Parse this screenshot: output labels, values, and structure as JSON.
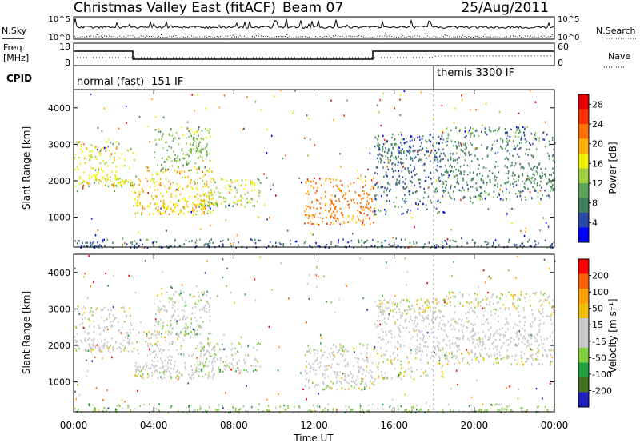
{
  "header": {
    "title": "Christmas Valley East (fitACF)",
    "beam": "Beam 07",
    "date": "25/Aug/2011"
  },
  "noise_panel": {
    "left_label": "N.Sky",
    "right_label": "N.Search",
    "left_ticks": [
      "10^5",
      "10^0"
    ],
    "right_ticks": [
      "10^5",
      "10^0"
    ]
  },
  "freq_panel": {
    "left_label_1": "Freq.",
    "left_label_2": "[MHz]",
    "right_label": "Nave",
    "left_ticks": [
      "18",
      "8"
    ],
    "right_ticks": [
      "60",
      "0"
    ]
  },
  "cpid_panel": {
    "label": "CPID",
    "segments": [
      {
        "label": "normal (fast) -151 IF",
        "start": "00:00"
      },
      {
        "label": "themis 3300 IF",
        "start": "18:00"
      }
    ]
  },
  "colors": {
    "power_scale": [
      "#0000ff",
      "#2a48a8",
      "#3f7f5f",
      "#5ba55b",
      "#9ed040",
      "#f0f000",
      "#ffb000",
      "#ff7000",
      "#ff3000",
      "#e80000"
    ],
    "velocity_scale": [
      "#2020c0",
      "#407020",
      "#20a040",
      "#80d040",
      "#c8c8c8",
      "#c8c8c8",
      "#f0c000",
      "#ffa000",
      "#ff6000",
      "#ff0000"
    ],
    "ground_scatter": "#909090"
  },
  "chart_data": [
    {
      "type": "heatmap",
      "name": "power",
      "ylabel": "Slant Range [km]",
      "xlabel": "Time UT",
      "x_ticks": [
        "00:00",
        "04:00",
        "08:00",
        "12:00",
        "16:00",
        "20:00",
        "00:00"
      ],
      "y_ticks": [
        1000,
        2000,
        3000,
        4000
      ],
      "ylim": [
        180,
        4500
      ],
      "xlim_hours": [
        0,
        24
      ],
      "colorbar": {
        "label": "Power [dB]",
        "ticks": [
          "4",
          "8",
          "12",
          "16",
          "20",
          "24",
          "28"
        ],
        "range": [
          0,
          30
        ]
      },
      "regions": [
        {
          "t0": 0.0,
          "t1": 3.0,
          "r0": 1850,
          "r1": 3100,
          "core": 2200,
          "value": 16
        },
        {
          "t0": 3.0,
          "t1": 7.0,
          "r0": 1100,
          "r1": 2400,
          "core": 1500,
          "value": 18
        },
        {
          "t0": 6.0,
          "t1": 9.3,
          "r0": 1300,
          "r1": 2100,
          "core": 1650,
          "value": 14
        },
        {
          "t0": 4.0,
          "t1": 6.8,
          "r0": 2300,
          "r1": 3500,
          "core": 2900,
          "value": 12
        },
        {
          "t0": 11.5,
          "t1": 15.0,
          "r0": 800,
          "r1": 2100,
          "core": 1400,
          "value": 22
        },
        {
          "t0": 15.0,
          "t1": 18.5,
          "r0": 1100,
          "r1": 3300,
          "core": 2500,
          "value": 6
        },
        {
          "t0": 18.5,
          "t1": 24.0,
          "r0": 1500,
          "r1": 3500,
          "core": 2300,
          "value": 8
        },
        {
          "t0": 0.0,
          "t1": 24.0,
          "r0": 180,
          "r1": 420,
          "core": 250,
          "value": 6
        }
      ]
    },
    {
      "type": "heatmap",
      "name": "velocity",
      "ylabel": "Slant Range [km]",
      "xlabel": "Time UT",
      "x_ticks": [
        "00:00",
        "04:00",
        "08:00",
        "12:00",
        "16:00",
        "20:00",
        "00:00"
      ],
      "y_ticks": [
        1000,
        2000,
        3000,
        4000
      ],
      "ylim": [
        180,
        4500
      ],
      "xlim_hours": [
        0,
        24
      ],
      "colorbar": {
        "label": "Velocity [m s⁻¹]",
        "ticks": [
          "200",
          "100",
          "50",
          "15",
          "-15",
          "-50",
          "-100",
          "-200"
        ],
        "range": [
          -250,
          250
        ]
      },
      "regions": [
        {
          "t0": 0.0,
          "t1": 3.0,
          "r0": 1850,
          "r1": 3100,
          "core": 2200,
          "value": 0
        },
        {
          "t0": 3.0,
          "t1": 7.0,
          "r0": 1100,
          "r1": 2400,
          "core": 1500,
          "value": -10
        },
        {
          "t0": 6.0,
          "t1": 9.3,
          "r0": 1300,
          "r1": 2100,
          "core": 1650,
          "value": -40
        },
        {
          "t0": 4.0,
          "t1": 6.8,
          "r0": 2300,
          "r1": 3500,
          "core": 2900,
          "value": -30
        },
        {
          "t0": 11.5,
          "t1": 15.0,
          "r0": 800,
          "r1": 2100,
          "core": 1400,
          "value": 0
        },
        {
          "t0": 15.0,
          "t1": 18.5,
          "r0": 1100,
          "r1": 3300,
          "core": 2500,
          "value": 5
        },
        {
          "t0": 18.5,
          "t1": 24.0,
          "r0": 1500,
          "r1": 3500,
          "core": 2300,
          "value": 5
        },
        {
          "t0": 0.0,
          "t1": 24.0,
          "r0": 180,
          "r1": 420,
          "core": 250,
          "value": -60
        }
      ]
    }
  ]
}
